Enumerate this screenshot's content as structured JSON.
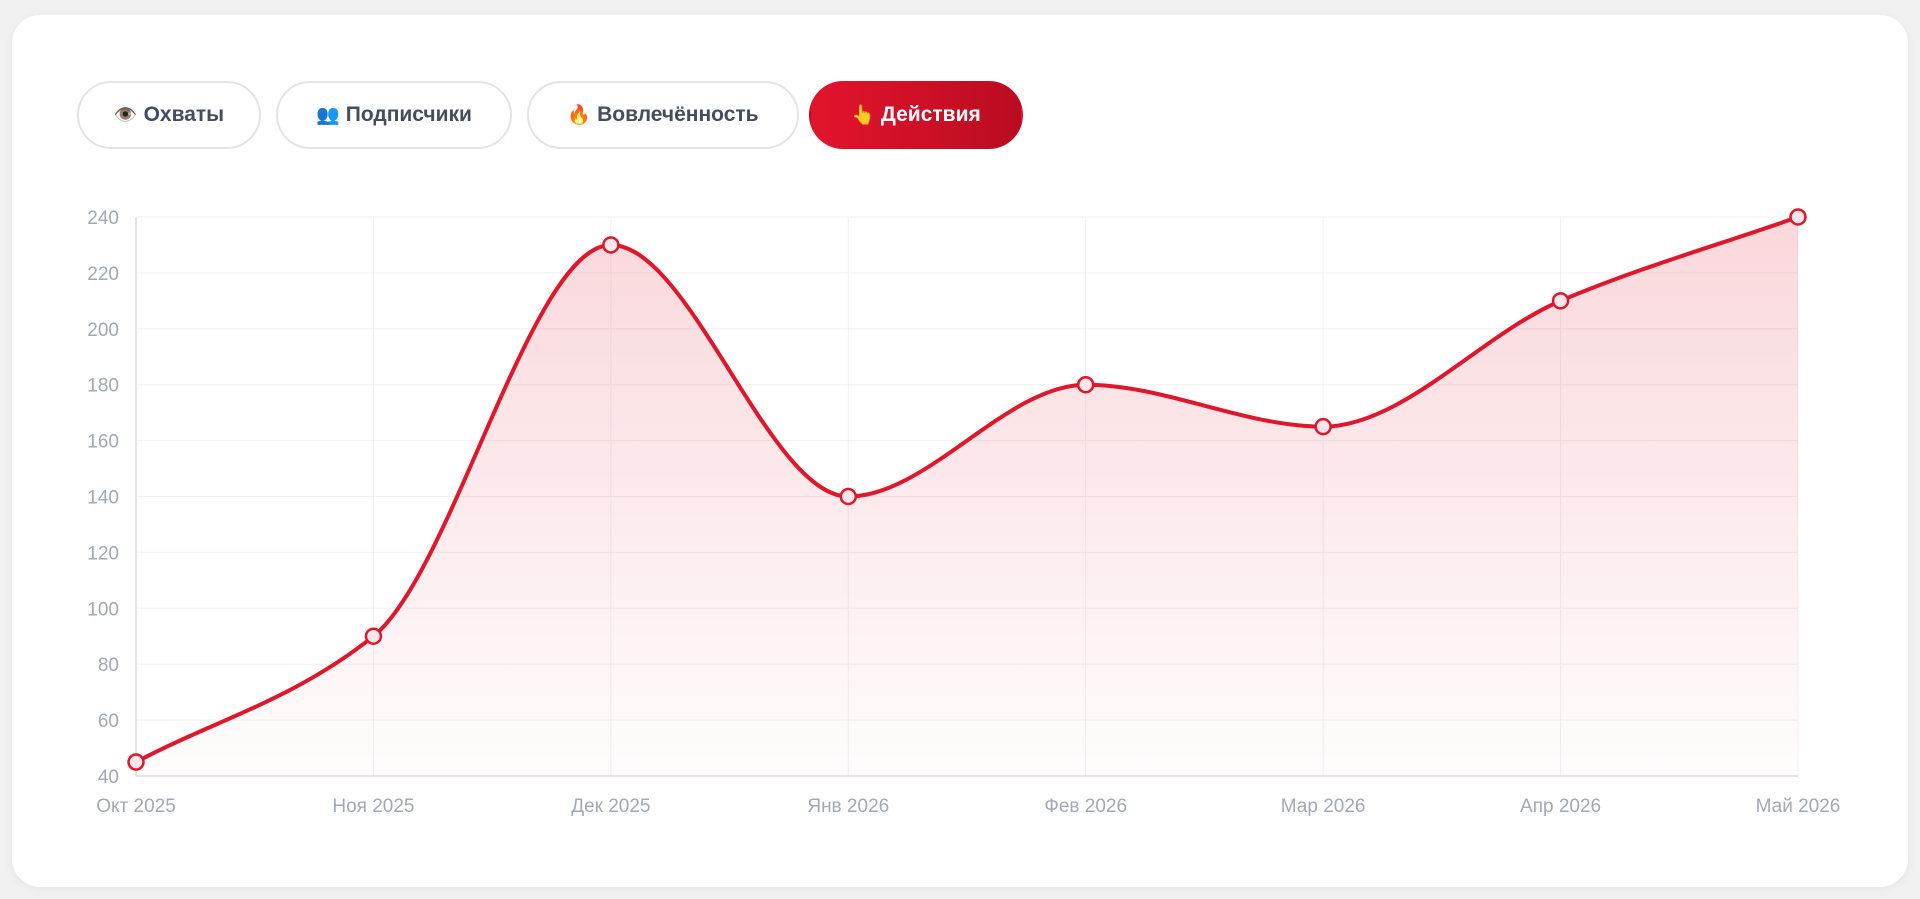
{
  "tabs": [
    {
      "icon": "👁️",
      "icon_name": "eye-icon",
      "label": "Охваты",
      "active": false
    },
    {
      "icon": "👥",
      "icon_name": "people-icon",
      "label": "Подписчики",
      "active": false
    },
    {
      "icon": "🔥",
      "icon_name": "fire-icon",
      "label": "Вовлечённость",
      "active": false
    },
    {
      "icon": "👆",
      "icon_name": "pointer-icon",
      "label": "Действия",
      "active": true
    }
  ],
  "colors": {
    "accent": "#e0162b",
    "accent_dark": "#b90c21",
    "grid": "#eef0f3",
    "tick": "#a3a8b6"
  },
  "chart_data": {
    "type": "area",
    "categories": [
      "Окт 2025",
      "Ноя 2025",
      "Дек 2025",
      "Янв 2026",
      "Фев 2026",
      "Мар 2026",
      "Апр 2026",
      "Май 2026"
    ],
    "series": [
      {
        "values": [
          45,
          90,
          230,
          140,
          180,
          165,
          210,
          240
        ]
      }
    ],
    "ylim": [
      40,
      240
    ],
    "yticks": [
      "40",
      "60",
      "80",
      "100",
      "120",
      "140",
      "160",
      "180",
      "200",
      "220",
      "240"
    ],
    "grid": true,
    "smooth": true,
    "xlabel": "",
    "ylabel": ""
  }
}
